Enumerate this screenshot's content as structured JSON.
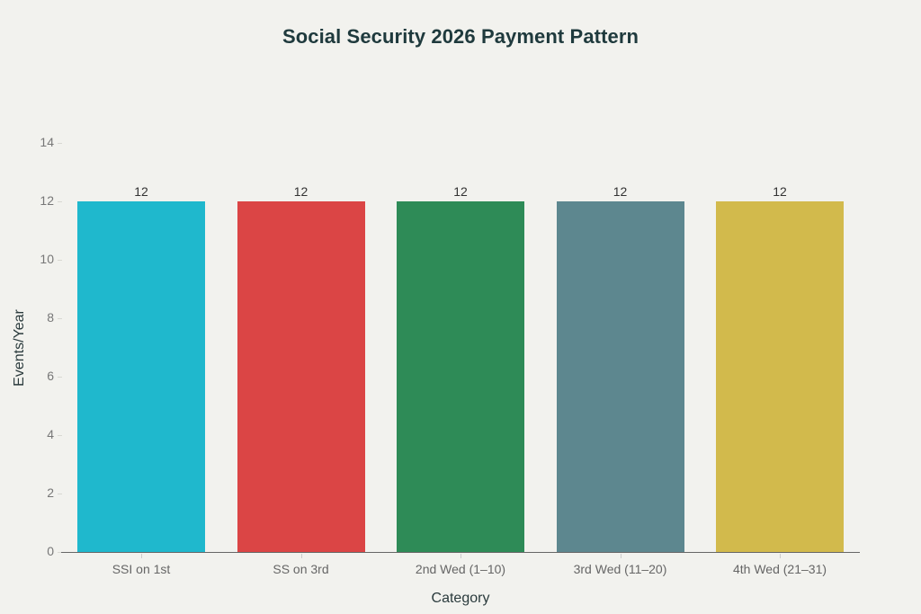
{
  "chart_data": {
    "type": "bar",
    "title": "Social Security 2026 Payment Pattern",
    "xlabel": "Category",
    "ylabel": "Events/Year",
    "categories": [
      "SSI on 1st",
      "SS on 3rd",
      "2nd Wed (1–10)",
      "3rd Wed (11–20)",
      "4th Wed (21–31)"
    ],
    "values": [
      12,
      12,
      12,
      12,
      12
    ],
    "colors": [
      "#1fb8cd",
      "#db4545",
      "#2e8b57",
      "#5d878f",
      "#d2ba4c"
    ],
    "data_labels": [
      "12",
      "12",
      "12",
      "12",
      "12"
    ],
    "ylim": [
      0,
      14
    ],
    "yticks": [
      0,
      2,
      4,
      6,
      8,
      10,
      12,
      14
    ],
    "grid": false,
    "legend": null
  }
}
